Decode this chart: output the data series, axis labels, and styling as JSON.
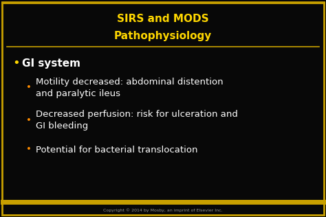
{
  "title_line1": "SIRS and MODS",
  "title_line2": "Pathophysiology",
  "title_color": "#FFD700",
  "background_color": "#080808",
  "border_color": "#C8A000",
  "separator_color": "#C8A000",
  "bullet_color_main": "#FFD700",
  "bullet_color_sub": "#FF8C00",
  "text_color_main": "#FFFFFF",
  "copyright_text": "Copyright © 2014 by Mosby, an imprint of Elsevier Inc.",
  "copyright_color": "#999999",
  "main_bullet": "GI system",
  "sub_bullets": [
    "Motility decreased: abdominal distention\nand paralytic ileus",
    "Decreased perfusion: risk for ulceration and\nGI bleeding",
    "Potential for bacterial translocation"
  ],
  "title_fontsize": 11,
  "main_bullet_fontsize": 11,
  "sub_bullet_fontsize": 9.5,
  "copyright_fontsize": 4.5
}
